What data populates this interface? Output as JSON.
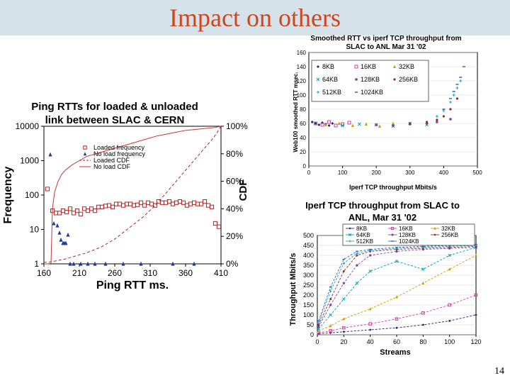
{
  "slide": {
    "title": "Impact on others",
    "page_number": "14"
  },
  "chart_data": [
    {
      "type": "scatter",
      "title": "Ping RTTs for loaded & unloaded link between SLAC & CERN",
      "title_lines": [
        "Ping RTTs for loaded & unloaded",
        "link between SLAC & CERN"
      ],
      "xlabel": "Ping RTT ms.",
      "ylabel": "Frequency",
      "y2label": "CDF",
      "xlim": [
        160,
        410
      ],
      "ylim": [
        1,
        10000
      ],
      "yscale": "log",
      "y2lim": [
        0,
        100
      ],
      "x_ticks": [
        "160",
        "210",
        "260",
        "310",
        "360",
        "410"
      ],
      "y_ticks": [
        "1",
        "10",
        "100",
        "1000",
        "10000"
      ],
      "y2_ticks": [
        "0%",
        "20%",
        "40%",
        "60%",
        "80%",
        "100%"
      ],
      "legend_position": "top-left",
      "series": [
        {
          "name": "Loaded frequency",
          "type": "scatter",
          "color": "#b22222",
          "marker": "square",
          "x": [
            165,
            172,
            177,
            182,
            187,
            192,
            197,
            202,
            207,
            212,
            217,
            222,
            227,
            232,
            237,
            242,
            247,
            252,
            257,
            262,
            267,
            272,
            277,
            282,
            287,
            292,
            297,
            302,
            307,
            312,
            317,
            322,
            327,
            332,
            337,
            342,
            347,
            352,
            357,
            362,
            367,
            372,
            377,
            382,
            387,
            392,
            397,
            402,
            407
          ],
          "y": [
            150,
            35,
            30,
            30,
            35,
            32,
            40,
            30,
            35,
            28,
            40,
            35,
            40,
            35,
            45,
            45,
            48,
            50,
            45,
            55,
            55,
            50,
            55,
            55,
            50,
            52,
            60,
            50,
            60,
            55,
            50,
            65,
            60,
            60,
            65,
            55,
            60,
            65,
            60,
            50,
            55,
            60,
            55,
            55,
            65,
            50,
            45,
            15,
            12
          ]
        },
        {
          "name": "No load frequency",
          "type": "scatter",
          "color": "#1f3c9b",
          "marker": "triangle",
          "x": [
            169,
            174,
            179,
            182,
            184,
            187,
            189,
            191,
            194,
            197,
            202,
            212,
            222,
            232,
            247,
            272,
            297,
            342,
            372
          ],
          "y": [
            1500,
            15,
            13,
            8,
            5,
            4,
            4,
            4,
            7,
            1,
            1,
            1,
            1,
            1,
            1,
            1,
            1,
            1,
            1
          ]
        },
        {
          "name": "Loaded CDF",
          "type": "line",
          "dash": true,
          "color": "#b22222",
          "x": [
            160,
            170,
            180,
            190,
            200,
            210,
            220,
            230,
            240,
            250,
            260,
            270,
            280,
            290,
            300,
            310,
            320,
            330,
            340,
            350,
            360,
            370,
            380,
            390,
            400,
            410
          ],
          "y": [
            1,
            1.5,
            2.5,
            3.5,
            5,
            6.5,
            8,
            10,
            12,
            15,
            18,
            22,
            26,
            30,
            34,
            39,
            44,
            50,
            56,
            62,
            68,
            74,
            80,
            86,
            92,
            100
          ]
        },
        {
          "name": "No load CDF",
          "type": "line",
          "color": "#d03030",
          "x": [
            160,
            165,
            170,
            172,
            175,
            180,
            185,
            190,
            195,
            200,
            210,
            220,
            240,
            260,
            280,
            300,
            320,
            340,
            360,
            380,
            400,
            410
          ],
          "y": [
            0,
            0,
            0.3,
            40,
            52,
            60,
            65,
            68,
            70,
            72,
            75,
            78,
            81,
            84,
            87,
            90,
            93,
            95,
            97,
            98,
            99,
            100
          ]
        }
      ]
    },
    {
      "type": "scatter",
      "title": "Smoothed RTT vs iperf TCP throughput from SLAC to ANL Mar 31 '02",
      "title_lines": [
        "Smoothed RTT vs iperf TCP throughput from",
        "SLAC to ANL Mar 31 '02"
      ],
      "xlabel": "Iperf TCP throughput Mbits/s",
      "ylabel": "Web100 smoothed RTT msec.",
      "xlim": [
        0,
        500
      ],
      "ylim": [
        0,
        160
      ],
      "x_ticks": [
        "0",
        "100",
        "200",
        "300",
        "400",
        "500"
      ],
      "y_ticks": [
        "0",
        "20",
        "40",
        "60",
        "80",
        "100",
        "120",
        "140",
        "160"
      ],
      "legend_position": "top-left",
      "series": [
        {
          "name": "8KB",
          "color": "#1f2a6b",
          "marker": "diamond",
          "x": [
            10,
            20,
            30,
            40,
            50,
            60,
            70
          ],
          "y": [
            62,
            60,
            58,
            61,
            59,
            57,
            60
          ]
        },
        {
          "name": "16KB",
          "color": "#d040a0",
          "marker": "square",
          "x": [
            20,
            40,
            60,
            80,
            100,
            120
          ],
          "y": [
            60,
            58,
            62,
            57,
            59,
            61
          ]
        },
        {
          "name": "32KB",
          "color": "#c8a000",
          "marker": "triangle",
          "x": [
            50,
            90,
            130,
            170,
            210,
            250
          ],
          "y": [
            58,
            60,
            57,
            59,
            56,
            60
          ]
        },
        {
          "name": "64KB",
          "color": "#00a0c0",
          "marker": "x",
          "x": [
            100,
            150,
            200,
            250,
            300,
            350
          ],
          "y": [
            57,
            59,
            58,
            56,
            60,
            58
          ]
        },
        {
          "name": "128KB",
          "color": "#8040a0",
          "marker": "star",
          "x": [
            200,
            250,
            300,
            350,
            380,
            420
          ],
          "y": [
            58,
            57,
            59,
            60,
            62,
            66
          ]
        },
        {
          "name": "256KB",
          "color": "#8b2a2a",
          "marker": "circle",
          "x": [
            300,
            350,
            380,
            400,
            420,
            440
          ],
          "y": [
            60,
            62,
            65,
            70,
            80,
            95
          ]
        },
        {
          "name": "512KB",
          "color": "#1fa0c0",
          "marker": "plus",
          "x": [
            380,
            400,
            420,
            430,
            440,
            450
          ],
          "y": [
            70,
            78,
            90,
            100,
            110,
            120
          ]
        },
        {
          "name": "1024KB",
          "color": "#3060c0",
          "marker": "dash",
          "x": [
            400,
            420,
            430,
            440,
            450,
            460
          ],
          "y": [
            80,
            95,
            105,
            115,
            125,
            140
          ]
        }
      ]
    },
    {
      "type": "line",
      "title": "Iperf TCP throughput from SLAC to ANL, Mar 31 '02",
      "title_lines": [
        "Iperf TCP throughput from SLAC to",
        "ANL, Mar 31 '02"
      ],
      "xlabel": "Streams",
      "ylabel": "Throughput Mbits/s",
      "xlim": [
        0,
        120
      ],
      "ylim": [
        0,
        500
      ],
      "x_ticks": [
        "0",
        "20",
        "40",
        "60",
        "80",
        "100",
        "120"
      ],
      "y_ticks": [
        "0",
        "50",
        "100",
        "150",
        "200",
        "250",
        "300",
        "350",
        "400",
        "450",
        "500"
      ],
      "legend_position": "top",
      "series": [
        {
          "name": "8KB",
          "color": "#1f2a6b",
          "marker": "diamond",
          "x": [
            1,
            10,
            20,
            40,
            60,
            80,
            100,
            120
          ],
          "y": [
            5,
            10,
            15,
            25,
            35,
            50,
            70,
            100
          ]
        },
        {
          "name": "16KB",
          "color": "#d040a0",
          "marker": "square",
          "x": [
            1,
            10,
            20,
            40,
            60,
            80,
            100,
            120
          ],
          "y": [
            10,
            20,
            35,
            55,
            80,
            110,
            150,
            200
          ]
        },
        {
          "name": "32KB",
          "color": "#c8a000",
          "marker": "triangle",
          "x": [
            1,
            10,
            20,
            40,
            60,
            80,
            100,
            120
          ],
          "y": [
            20,
            45,
            80,
            130,
            190,
            260,
            330,
            400
          ]
        },
        {
          "name": "64KB",
          "color": "#00a0c0",
          "marker": "x",
          "x": [
            1,
            10,
            20,
            30,
            40,
            60,
            80,
            100,
            120
          ],
          "y": [
            30,
            100,
            180,
            260,
            320,
            370,
            330,
            400,
            440
          ]
        },
        {
          "name": "128KB",
          "color": "#8040a0",
          "marker": "star",
          "x": [
            1,
            10,
            20,
            30,
            40,
            60,
            80,
            100,
            120
          ],
          "y": [
            40,
            150,
            260,
            350,
            400,
            420,
            430,
            435,
            440
          ]
        },
        {
          "name": "256KB",
          "color": "#8b2a2a",
          "marker": "circle",
          "x": [
            1,
            10,
            20,
            30,
            40,
            60,
            80,
            100,
            120
          ],
          "y": [
            50,
            180,
            320,
            400,
            420,
            430,
            435,
            440,
            445
          ]
        },
        {
          "name": "512KB",
          "color": "#1fa0c0",
          "marker": "plus",
          "x": [
            1,
            10,
            20,
            30,
            40,
            60,
            80,
            100,
            120
          ],
          "y": [
            60,
            220,
            360,
            410,
            425,
            435,
            440,
            445,
            450
          ]
        },
        {
          "name": "1024KB",
          "color": "#3060c0",
          "marker": "dash",
          "x": [
            1,
            10,
            20,
            30,
            40,
            60,
            80,
            100,
            120
          ],
          "y": [
            70,
            240,
            380,
            420,
            430,
            440,
            445,
            450,
            455
          ]
        }
      ]
    }
  ]
}
